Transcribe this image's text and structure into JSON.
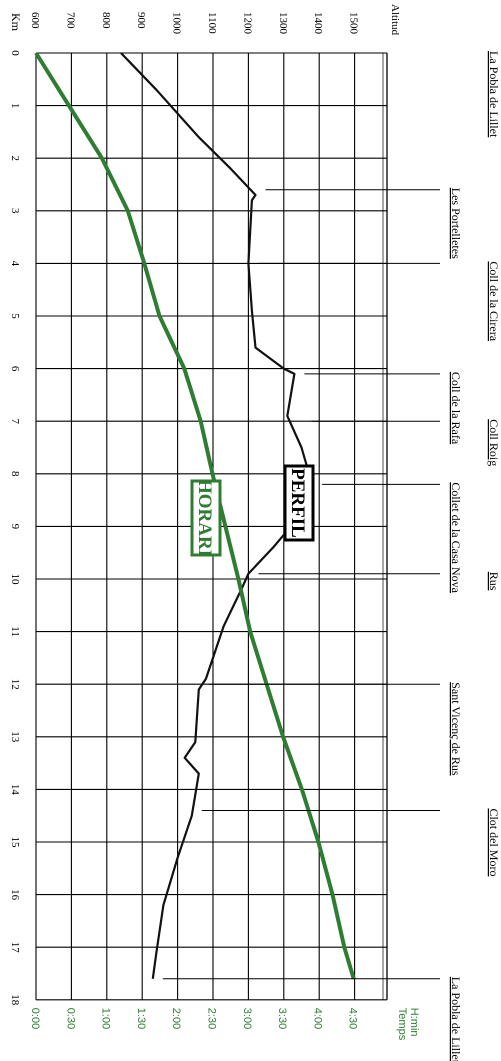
{
  "chart_data": {
    "type": "line",
    "km_label": "Km",
    "altitude_label": "Altitud",
    "time_label": "Temps\nH:min",
    "km_ticks": [
      0,
      1,
      2,
      3,
      4,
      5,
      6,
      7,
      8,
      9,
      10,
      11,
      12,
      13,
      14,
      15,
      16,
      17,
      18
    ],
    "altitude_ticks": [
      600,
      700,
      800,
      900,
      1000,
      1100,
      1200,
      1300,
      1400,
      1500
    ],
    "altitude_range": [
      600,
      1500
    ],
    "km_range": [
      0,
      18
    ],
    "time_ticks": [
      "0:00",
      "0:30",
      "1:00",
      "1:30",
      "2:00",
      "2:30",
      "3:00",
      "3:30",
      "4:00",
      "4:30"
    ],
    "time_range_minutes": [
      0,
      270
    ],
    "colors": {
      "profile": "#111111",
      "horari": "#2e7d32",
      "grid": "#000000"
    },
    "series": [
      {
        "name": "PERFIL",
        "unit": "m",
        "x": [
          0,
          0.7,
          1.6,
          2.2,
          2.7,
          2.8,
          4.0,
          4.9,
          5.6,
          6.0,
          6.1,
          6.9,
          7.5,
          8.2,
          8.7,
          9.0,
          9.4,
          9.9,
          10.2,
          10.9,
          11.9,
          12.1,
          13.1,
          13.4,
          13.7,
          14.5,
          15.3,
          16.2,
          17.1,
          17.6
        ],
        "y": [
          840,
          940,
          1060,
          1150,
          1220,
          1210,
          1200,
          1210,
          1220,
          1300,
          1330,
          1310,
          1350,
          1380,
          1340,
          1320,
          1270,
          1200,
          1180,
          1130,
          1080,
          1060,
          1050,
          1020,
          1060,
          1040,
          1000,
          960,
          940,
          930
        ]
      },
      {
        "name": "HORARI",
        "unit": "min",
        "x": [
          0,
          1,
          2,
          3,
          4,
          5,
          6,
          7,
          8,
          9,
          10,
          11,
          12,
          13,
          14,
          15,
          16,
          17,
          17.6
        ],
        "y": [
          0,
          28,
          56,
          78,
          92,
          105,
          126,
          140,
          150,
          161,
          172,
          182,
          196,
          210,
          226,
          240,
          252,
          262,
          270
        ]
      }
    ],
    "waypoints": [
      {
        "name": "La Pobla de Lillet",
        "km": 0
      },
      {
        "name": "Les Portelletes",
        "km": 2.6
      },
      {
        "name": "Coll de la Cirera",
        "km": 4.0
      },
      {
        "name": "Coll de la Rafa",
        "km": 6.1
      },
      {
        "name": "Coll Roig",
        "km": 7.0
      },
      {
        "name": "Collet de la Casa Nova",
        "km": 8.2
      },
      {
        "name": "Rus",
        "km": 9.9
      },
      {
        "name": "Sant Vicenç de Rus",
        "km": 12.0
      },
      {
        "name": "Clot del Moro",
        "km": 14.4
      },
      {
        "name": "La Pobla de Lillet",
        "km": 17.6
      }
    ]
  }
}
